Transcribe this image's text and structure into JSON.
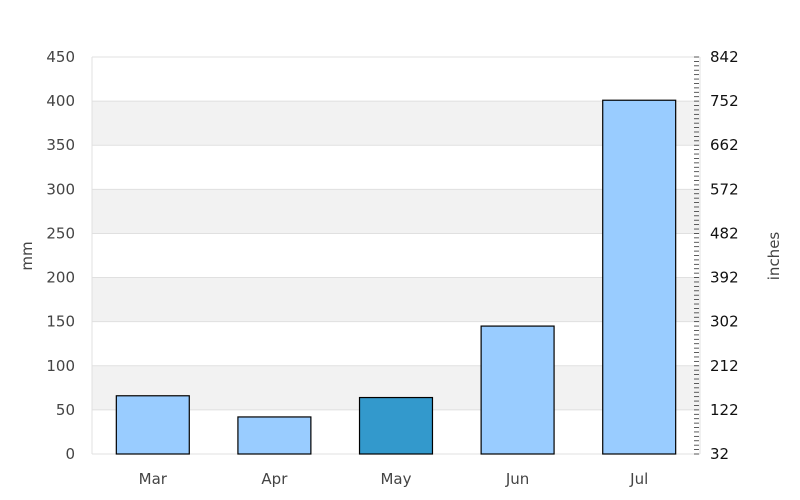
{
  "chart_data": {
    "type": "bar",
    "categories": [
      "Mar",
      "Apr",
      "May",
      "Jun",
      "Jul"
    ],
    "values": [
      66,
      42,
      64,
      145,
      401
    ],
    "highlight_index": 2,
    "ylabel": "mm",
    "y2label": "inches",
    "ylim": [
      0,
      450
    ],
    "y_ticks": [
      0,
      50,
      100,
      150,
      200,
      250,
      300,
      350,
      400,
      450
    ],
    "y2_ticks": [
      32,
      122,
      212,
      302,
      392,
      482,
      572,
      662,
      752,
      842
    ],
    "colors": {
      "bar": "#99ccff",
      "bar_highlight": "#3399cc",
      "bar_stroke": "#000000",
      "band": "#f2f2f2",
      "grid": "#e0e0e0"
    },
    "grid": true
  }
}
